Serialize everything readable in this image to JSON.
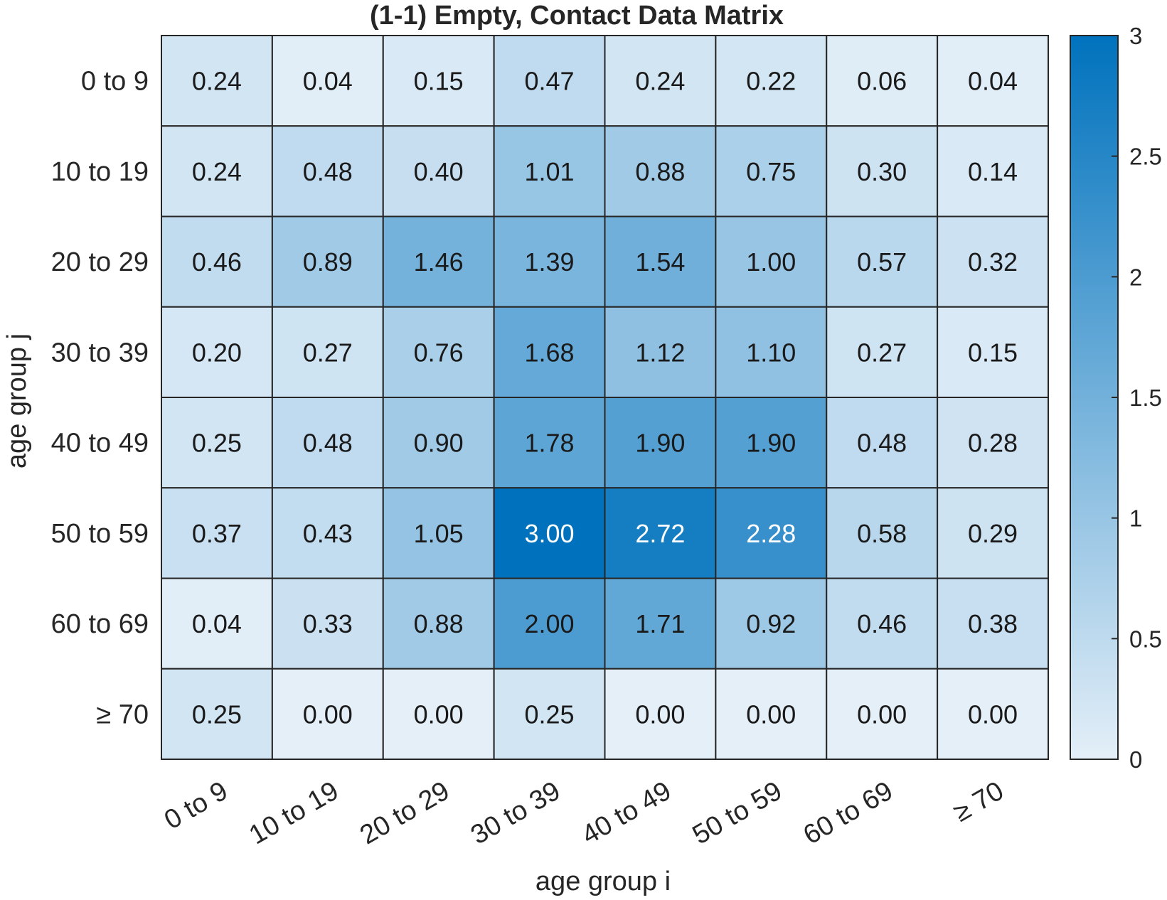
{
  "chart_data": {
    "type": "heatmap",
    "title": "(1-1) Empty, Contact Data Matrix",
    "xlabel": "age group i",
    "ylabel": "age group j",
    "x_categories": [
      "0 to 9",
      "10 to 19",
      "20 to 29",
      "30 to 39",
      "40 to 49",
      "50 to 59",
      "60 to 69",
      "≥ 70"
    ],
    "y_categories": [
      "0 to 9",
      "10 to 19",
      "20 to 29",
      "30 to 39",
      "40 to 49",
      "50 to 59",
      "60 to 69",
      "≥ 70"
    ],
    "values": [
      [
        0.24,
        0.04,
        0.15,
        0.47,
        0.24,
        0.22,
        0.06,
        0.04
      ],
      [
        0.24,
        0.48,
        0.4,
        1.01,
        0.88,
        0.75,
        0.3,
        0.14
      ],
      [
        0.46,
        0.89,
        1.46,
        1.39,
        1.54,
        1.0,
        0.57,
        0.32
      ],
      [
        0.2,
        0.27,
        0.76,
        1.68,
        1.12,
        1.1,
        0.27,
        0.15
      ],
      [
        0.25,
        0.48,
        0.9,
        1.78,
        1.9,
        1.9,
        0.48,
        0.28
      ],
      [
        0.37,
        0.43,
        1.05,
        3.0,
        2.72,
        2.28,
        0.58,
        0.29
      ],
      [
        0.04,
        0.33,
        0.88,
        2.0,
        1.71,
        0.92,
        0.46,
        0.38
      ],
      [
        0.25,
        0.0,
        0.0,
        0.25,
        0.0,
        0.0,
        0.0,
        0.0
      ]
    ],
    "colorbar": {
      "range": [
        0,
        3
      ],
      "ticks": [
        "0",
        "0.5",
        "1",
        "1.5",
        "2",
        "2.5",
        "3"
      ],
      "color_low": "#e4eff8",
      "color_high": "#0072bd"
    },
    "grid": true
  }
}
